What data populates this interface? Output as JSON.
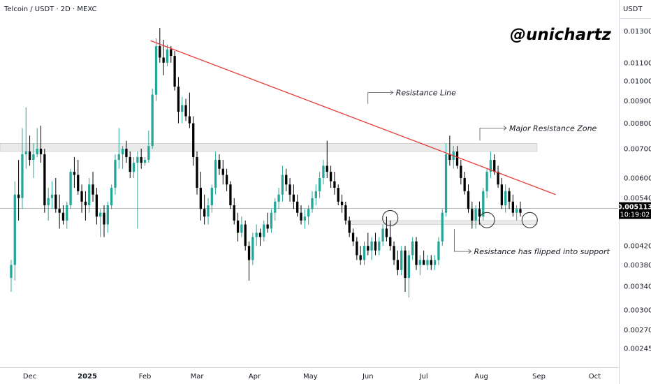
{
  "header": {
    "title": "Telcoin / USDT · 2D · MEXC",
    "currency": "USDT",
    "brand": "@unichartz"
  },
  "chart_data": {
    "type": "candlestick",
    "title": "Telcoin / USDT · 2D · MEXC",
    "ylabel": "USDT",
    "yscale": "log",
    "ylim": [
      0.00222,
      0.0138
    ],
    "y_ticks": [
      "0.013000",
      "0.011000",
      "0.010000",
      "0.009000",
      "0.008000",
      "0.007000",
      "0.006000",
      "0.005400",
      "0.004200",
      "0.003800",
      "0.003400",
      "0.003000",
      "0.002700",
      "0.002450"
    ],
    "x_ticks": [
      "Dec",
      "2025",
      "Feb",
      "Mar",
      "Apr",
      "May",
      "Jun",
      "Jul",
      "Aug",
      "Sep",
      "Oct"
    ],
    "x_range": [
      "2024-11-15",
      "2025-10-14"
    ],
    "current_price": "0.005113",
    "countdown": "10:19:02",
    "colors": {
      "up": "#26a69a",
      "down": "#000000",
      "resistance_line": "#e53935",
      "zone": "#d9d9d9"
    },
    "resistance_zones": [
      {
        "from": "2024-11-15",
        "to": "2025-08-31",
        "low": 0.0069,
        "high": 0.0072
      },
      {
        "from": "2025-05-21",
        "to": "2025-08-31",
        "low": 0.0047,
        "high": 0.0048
      }
    ],
    "resistance_line": {
      "start": [
        "2025-02-04",
        0.01235
      ],
      "end": [
        "2025-09-10",
        0.0055
      ]
    },
    "circles": [
      {
        "date": "2025-06-13",
        "value": 0.00486
      },
      {
        "date": "2025-08-04",
        "value": 0.00481
      },
      {
        "date": "2025-08-27",
        "value": 0.00481
      }
    ],
    "annotations": [
      {
        "text": "Resistance Line",
        "date": "2025-06-16",
        "value": 0.0094
      },
      {
        "text": "Major Resistance Zone",
        "date": "2025-08-16",
        "value": 0.0078
      },
      {
        "text": "Resistance has flipped into support",
        "date": "2025-07-28",
        "value": 0.00408
      }
    ],
    "candles": [
      {
        "d": "2024-11-21",
        "o": 0.00355,
        "h": 0.0039,
        "l": 0.0033,
        "c": 0.0038
      },
      {
        "d": "2024-11-23",
        "o": 0.0038,
        "h": 0.0059,
        "l": 0.0035,
        "c": 0.0055
      },
      {
        "d": "2024-11-25",
        "o": 0.0055,
        "h": 0.0066,
        "l": 0.0048,
        "c": 0.0054
      },
      {
        "d": "2024-11-27",
        "o": 0.0054,
        "h": 0.0078,
        "l": 0.0051,
        "c": 0.0068
      },
      {
        "d": "2024-11-29",
        "o": 0.0068,
        "h": 0.0087,
        "l": 0.0063,
        "c": 0.0069
      },
      {
        "d": "2024-12-01",
        "o": 0.0069,
        "h": 0.0075,
        "l": 0.0064,
        "c": 0.0066
      },
      {
        "d": "2024-12-03",
        "o": 0.0066,
        "h": 0.0072,
        "l": 0.006,
        "c": 0.0068
      },
      {
        "d": "2024-12-05",
        "o": 0.0068,
        "h": 0.0078,
        "l": 0.0067,
        "c": 0.007
      },
      {
        "d": "2024-12-07",
        "o": 0.007,
        "h": 0.0079,
        "l": 0.0065,
        "c": 0.0068
      },
      {
        "d": "2024-12-09",
        "o": 0.0068,
        "h": 0.007,
        "l": 0.005,
        "c": 0.0052
      },
      {
        "d": "2024-12-11",
        "o": 0.0052,
        "h": 0.0057,
        "l": 0.0048,
        "c": 0.0054
      },
      {
        "d": "2024-12-13",
        "o": 0.0054,
        "h": 0.0059,
        "l": 0.0051,
        "c": 0.0055
      },
      {
        "d": "2024-12-15",
        "o": 0.0055,
        "h": 0.006,
        "l": 0.005,
        "c": 0.0051
      },
      {
        "d": "2024-12-17",
        "o": 0.0051,
        "h": 0.0055,
        "l": 0.0046,
        "c": 0.005
      },
      {
        "d": "2024-12-19",
        "o": 0.005,
        "h": 0.0052,
        "l": 0.0047,
        "c": 0.0048
      },
      {
        "d": "2024-12-21",
        "o": 0.0048,
        "h": 0.0053,
        "l": 0.0046,
        "c": 0.0052
      },
      {
        "d": "2024-12-23",
        "o": 0.0052,
        "h": 0.0063,
        "l": 0.0051,
        "c": 0.0062
      },
      {
        "d": "2024-12-25",
        "o": 0.0062,
        "h": 0.0067,
        "l": 0.0057,
        "c": 0.0061
      },
      {
        "d": "2024-12-27",
        "o": 0.0061,
        "h": 0.0066,
        "l": 0.0055,
        "c": 0.0056
      },
      {
        "d": "2024-12-29",
        "o": 0.0056,
        "h": 0.0058,
        "l": 0.005,
        "c": 0.0053
      },
      {
        "d": "2024-12-31",
        "o": 0.0053,
        "h": 0.0056,
        "l": 0.0048,
        "c": 0.0052
      },
      {
        "d": "2025-01-02",
        "o": 0.0052,
        "h": 0.006,
        "l": 0.005,
        "c": 0.0058
      },
      {
        "d": "2025-01-04",
        "o": 0.0058,
        "h": 0.0062,
        "l": 0.0053,
        "c": 0.0055
      },
      {
        "d": "2025-01-06",
        "o": 0.0055,
        "h": 0.0057,
        "l": 0.0047,
        "c": 0.0049
      },
      {
        "d": "2025-01-08",
        "o": 0.0049,
        "h": 0.0051,
        "l": 0.0044,
        "c": 0.005
      },
      {
        "d": "2025-01-10",
        "o": 0.005,
        "h": 0.0052,
        "l": 0.0044,
        "c": 0.0047
      },
      {
        "d": "2025-01-12",
        "o": 0.0047,
        "h": 0.0053,
        "l": 0.0045,
        "c": 0.0052
      },
      {
        "d": "2025-01-14",
        "o": 0.0052,
        "h": 0.0058,
        "l": 0.0051,
        "c": 0.0057
      },
      {
        "d": "2025-01-16",
        "o": 0.0057,
        "h": 0.0068,
        "l": 0.0055,
        "c": 0.0066
      },
      {
        "d": "2025-01-18",
        "o": 0.0066,
        "h": 0.0078,
        "l": 0.0063,
        "c": 0.0068
      },
      {
        "d": "2025-01-20",
        "o": 0.0068,
        "h": 0.0071,
        "l": 0.0063,
        "c": 0.007
      },
      {
        "d": "2025-01-22",
        "o": 0.007,
        "h": 0.0073,
        "l": 0.0065,
        "c": 0.0067
      },
      {
        "d": "2025-01-24",
        "o": 0.0067,
        "h": 0.0069,
        "l": 0.006,
        "c": 0.0062
      },
      {
        "d": "2025-01-26",
        "o": 0.0062,
        "h": 0.0067,
        "l": 0.006,
        "c": 0.0065
      },
      {
        "d": "2025-01-28",
        "o": 0.0065,
        "h": 0.0069,
        "l": 0.0046,
        "c": 0.0067
      },
      {
        "d": "2025-01-30",
        "o": 0.0067,
        "h": 0.007,
        "l": 0.0063,
        "c": 0.0065
      },
      {
        "d": "2025-02-01",
        "o": 0.0065,
        "h": 0.0067,
        "l": 0.0064,
        "c": 0.0066
      },
      {
        "d": "2025-02-03",
        "o": 0.0066,
        "h": 0.0077,
        "l": 0.0065,
        "c": 0.0071
      },
      {
        "d": "2025-02-05",
        "o": 0.0071,
        "h": 0.0096,
        "l": 0.007,
        "c": 0.0093
      },
      {
        "d": "2025-02-07",
        "o": 0.0093,
        "h": 0.0125,
        "l": 0.009,
        "c": 0.012
      },
      {
        "d": "2025-02-09",
        "o": 0.012,
        "h": 0.0132,
        "l": 0.011,
        "c": 0.0113
      },
      {
        "d": "2025-02-11",
        "o": 0.0113,
        "h": 0.0124,
        "l": 0.0103,
        "c": 0.011
      },
      {
        "d": "2025-02-13",
        "o": 0.011,
        "h": 0.0121,
        "l": 0.0108,
        "c": 0.0118
      },
      {
        "d": "2025-02-15",
        "o": 0.0118,
        "h": 0.012,
        "l": 0.011,
        "c": 0.0114
      },
      {
        "d": "2025-02-17",
        "o": 0.0114,
        "h": 0.0117,
        "l": 0.0095,
        "c": 0.0097
      },
      {
        "d": "2025-02-19",
        "o": 0.0097,
        "h": 0.0102,
        "l": 0.008,
        "c": 0.0085
      },
      {
        "d": "2025-02-21",
        "o": 0.0085,
        "h": 0.0092,
        "l": 0.008,
        "c": 0.0088
      },
      {
        "d": "2025-02-23",
        "o": 0.0088,
        "h": 0.0091,
        "l": 0.0081,
        "c": 0.0083
      },
      {
        "d": "2025-02-25",
        "o": 0.0083,
        "h": 0.0094,
        "l": 0.0078,
        "c": 0.008
      },
      {
        "d": "2025-02-27",
        "o": 0.008,
        "h": 0.0083,
        "l": 0.0064,
        "c": 0.0067
      },
      {
        "d": "2025-03-01",
        "o": 0.0067,
        "h": 0.0069,
        "l": 0.0055,
        "c": 0.0057
      },
      {
        "d": "2025-03-03",
        "o": 0.0057,
        "h": 0.0062,
        "l": 0.0048,
        "c": 0.0051
      },
      {
        "d": "2025-03-05",
        "o": 0.0051,
        "h": 0.0055,
        "l": 0.0047,
        "c": 0.0049
      },
      {
        "d": "2025-03-07",
        "o": 0.0049,
        "h": 0.0054,
        "l": 0.0047,
        "c": 0.0052
      },
      {
        "d": "2025-03-09",
        "o": 0.0052,
        "h": 0.0058,
        "l": 0.005,
        "c": 0.0057
      },
      {
        "d": "2025-03-11",
        "o": 0.0057,
        "h": 0.0069,
        "l": 0.0055,
        "c": 0.0066
      },
      {
        "d": "2025-03-13",
        "o": 0.0066,
        "h": 0.0068,
        "l": 0.0061,
        "c": 0.0063
      },
      {
        "d": "2025-03-15",
        "o": 0.0063,
        "h": 0.0066,
        "l": 0.0058,
        "c": 0.0061
      },
      {
        "d": "2025-03-17",
        "o": 0.0061,
        "h": 0.0063,
        "l": 0.0056,
        "c": 0.0058
      },
      {
        "d": "2025-03-19",
        "o": 0.0058,
        "h": 0.0059,
        "l": 0.0051,
        "c": 0.0052
      },
      {
        "d": "2025-03-21",
        "o": 0.0052,
        "h": 0.0054,
        "l": 0.0047,
        "c": 0.0048
      },
      {
        "d": "2025-03-23",
        "o": 0.0048,
        "h": 0.005,
        "l": 0.0043,
        "c": 0.0045
      },
      {
        "d": "2025-03-25",
        "o": 0.0045,
        "h": 0.0049,
        "l": 0.0044,
        "c": 0.0047
      },
      {
        "d": "2025-03-27",
        "o": 0.0047,
        "h": 0.0048,
        "l": 0.0041,
        "c": 0.0042
      },
      {
        "d": "2025-03-29",
        "o": 0.0042,
        "h": 0.0043,
        "l": 0.0035,
        "c": 0.0039
      },
      {
        "d": "2025-03-31",
        "o": 0.0039,
        "h": 0.0045,
        "l": 0.0038,
        "c": 0.0044
      },
      {
        "d": "2025-04-02",
        "o": 0.0044,
        "h": 0.0047,
        "l": 0.0042,
        "c": 0.0045
      },
      {
        "d": "2025-04-04",
        "o": 0.0045,
        "h": 0.0046,
        "l": 0.0042,
        "c": 0.0044
      },
      {
        "d": "2025-04-06",
        "o": 0.0044,
        "h": 0.0048,
        "l": 0.0043,
        "c": 0.0047
      },
      {
        "d": "2025-04-08",
        "o": 0.0047,
        "h": 0.005,
        "l": 0.0045,
        "c": 0.0046
      },
      {
        "d": "2025-04-10",
        "o": 0.0046,
        "h": 0.0051,
        "l": 0.0045,
        "c": 0.005
      },
      {
        "d": "2025-04-12",
        "o": 0.005,
        "h": 0.0054,
        "l": 0.0048,
        "c": 0.0053
      },
      {
        "d": "2025-04-14",
        "o": 0.0053,
        "h": 0.0057,
        "l": 0.0051,
        "c": 0.0055
      },
      {
        "d": "2025-04-16",
        "o": 0.0055,
        "h": 0.0064,
        "l": 0.0053,
        "c": 0.0061
      },
      {
        "d": "2025-04-18",
        "o": 0.0061,
        "h": 0.0063,
        "l": 0.0056,
        "c": 0.0058
      },
      {
        "d": "2025-04-20",
        "o": 0.0058,
        "h": 0.006,
        "l": 0.0053,
        "c": 0.0055
      },
      {
        "d": "2025-04-22",
        "o": 0.0055,
        "h": 0.0058,
        "l": 0.0051,
        "c": 0.0053
      },
      {
        "d": "2025-04-24",
        "o": 0.0053,
        "h": 0.0055,
        "l": 0.0049,
        "c": 0.005
      },
      {
        "d": "2025-04-26",
        "o": 0.005,
        "h": 0.0052,
        "l": 0.0047,
        "c": 0.0048
      },
      {
        "d": "2025-04-28",
        "o": 0.0048,
        "h": 0.0051,
        "l": 0.0046,
        "c": 0.0049
      },
      {
        "d": "2025-04-30",
        "o": 0.0049,
        "h": 0.0052,
        "l": 0.0047,
        "c": 0.0051
      },
      {
        "d": "2025-05-02",
        "o": 0.0051,
        "h": 0.0056,
        "l": 0.005,
        "c": 0.0054
      },
      {
        "d": "2025-05-04",
        "o": 0.0054,
        "h": 0.0058,
        "l": 0.0052,
        "c": 0.0056
      },
      {
        "d": "2025-05-06",
        "o": 0.0056,
        "h": 0.0062,
        "l": 0.0054,
        "c": 0.006
      },
      {
        "d": "2025-05-08",
        "o": 0.006,
        "h": 0.0066,
        "l": 0.0058,
        "c": 0.0064
      },
      {
        "d": "2025-05-10",
        "o": 0.0064,
        "h": 0.0073,
        "l": 0.006,
        "c": 0.0062
      },
      {
        "d": "2025-05-12",
        "o": 0.0062,
        "h": 0.0064,
        "l": 0.0057,
        "c": 0.0059
      },
      {
        "d": "2025-05-14",
        "o": 0.0059,
        "h": 0.0062,
        "l": 0.0055,
        "c": 0.0057
      },
      {
        "d": "2025-05-16",
        "o": 0.0057,
        "h": 0.0058,
        "l": 0.0052,
        "c": 0.0053
      },
      {
        "d": "2025-05-18",
        "o": 0.0053,
        "h": 0.0055,
        "l": 0.005,
        "c": 0.0052
      },
      {
        "d": "2025-05-20",
        "o": 0.0052,
        "h": 0.0053,
        "l": 0.0047,
        "c": 0.0048
      },
      {
        "d": "2025-05-22",
        "o": 0.0048,
        "h": 0.0049,
        "l": 0.0044,
        "c": 0.0045
      },
      {
        "d": "2025-05-24",
        "o": 0.0045,
        "h": 0.0046,
        "l": 0.0042,
        "c": 0.0043
      },
      {
        "d": "2025-05-26",
        "o": 0.0043,
        "h": 0.0044,
        "l": 0.0039,
        "c": 0.004
      },
      {
        "d": "2025-05-28",
        "o": 0.004,
        "h": 0.0042,
        "l": 0.0038,
        "c": 0.0039
      },
      {
        "d": "2025-05-30",
        "o": 0.0039,
        "h": 0.0043,
        "l": 0.0038,
        "c": 0.0042
      },
      {
        "d": "2025-06-01",
        "o": 0.0042,
        "h": 0.0045,
        "l": 0.004,
        "c": 0.0041
      },
      {
        "d": "2025-06-03",
        "o": 0.0041,
        "h": 0.0044,
        "l": 0.0039,
        "c": 0.0043
      },
      {
        "d": "2025-06-05",
        "o": 0.0043,
        "h": 0.0045,
        "l": 0.004,
        "c": 0.0041
      },
      {
        "d": "2025-06-07",
        "o": 0.0041,
        "h": 0.0044,
        "l": 0.004,
        "c": 0.0043
      },
      {
        "d": "2025-06-09",
        "o": 0.0043,
        "h": 0.0047,
        "l": 0.0042,
        "c": 0.0046
      },
      {
        "d": "2025-06-11",
        "o": 0.0046,
        "h": 0.0049,
        "l": 0.0043,
        "c": 0.0044
      },
      {
        "d": "2025-06-13",
        "o": 0.0044,
        "h": 0.0048,
        "l": 0.0041,
        "c": 0.0042
      },
      {
        "d": "2025-06-15",
        "o": 0.0042,
        "h": 0.0043,
        "l": 0.0038,
        "c": 0.0039
      },
      {
        "d": "2025-06-17",
        "o": 0.0039,
        "h": 0.0041,
        "l": 0.0036,
        "c": 0.0037
      },
      {
        "d": "2025-06-19",
        "o": 0.0037,
        "h": 0.0042,
        "l": 0.0036,
        "c": 0.0041
      },
      {
        "d": "2025-06-21",
        "o": 0.0041,
        "h": 0.0042,
        "l": 0.0033,
        "c": 0.00355
      },
      {
        "d": "2025-06-23",
        "o": 0.00355,
        "h": 0.0041,
        "l": 0.0032,
        "c": 0.004
      },
      {
        "d": "2025-06-25",
        "o": 0.004,
        "h": 0.0044,
        "l": 0.0039,
        "c": 0.0043
      },
      {
        "d": "2025-06-27",
        "o": 0.0043,
        "h": 0.0044,
        "l": 0.0037,
        "c": 0.0038
      },
      {
        "d": "2025-06-29",
        "o": 0.0038,
        "h": 0.004,
        "l": 0.0036,
        "c": 0.0039
      },
      {
        "d": "2025-07-01",
        "o": 0.0039,
        "h": 0.0041,
        "l": 0.0038,
        "c": 0.0038
      },
      {
        "d": "2025-07-03",
        "o": 0.0038,
        "h": 0.004,
        "l": 0.0037,
        "c": 0.0039
      },
      {
        "d": "2025-07-05",
        "o": 0.0039,
        "h": 0.004,
        "l": 0.0037,
        "c": 0.0038
      },
      {
        "d": "2025-07-07",
        "o": 0.0038,
        "h": 0.004,
        "l": 0.0037,
        "c": 0.0039
      },
      {
        "d": "2025-07-09",
        "o": 0.0039,
        "h": 0.0044,
        "l": 0.0038,
        "c": 0.0043
      },
      {
        "d": "2025-07-11",
        "o": 0.0043,
        "h": 0.0051,
        "l": 0.0042,
        "c": 0.005
      },
      {
        "d": "2025-07-13",
        "o": 0.005,
        "h": 0.0072,
        "l": 0.0049,
        "c": 0.0068
      },
      {
        "d": "2025-07-15",
        "o": 0.0068,
        "h": 0.0075,
        "l": 0.0064,
        "c": 0.0066
      },
      {
        "d": "2025-07-17",
        "o": 0.0066,
        "h": 0.0071,
        "l": 0.0063,
        "c": 0.0069
      },
      {
        "d": "2025-07-19",
        "o": 0.0069,
        "h": 0.0071,
        "l": 0.0063,
        "c": 0.0064
      },
      {
        "d": "2025-07-21",
        "o": 0.0064,
        "h": 0.0066,
        "l": 0.0058,
        "c": 0.006
      },
      {
        "d": "2025-07-23",
        "o": 0.006,
        "h": 0.0062,
        "l": 0.0055,
        "c": 0.0056
      },
      {
        "d": "2025-07-25",
        "o": 0.0056,
        "h": 0.0058,
        "l": 0.005,
        "c": 0.0051
      },
      {
        "d": "2025-07-27",
        "o": 0.0051,
        "h": 0.0053,
        "l": 0.0046,
        "c": 0.0048
      },
      {
        "d": "2025-07-29",
        "o": 0.0048,
        "h": 0.0052,
        "l": 0.0046,
        "c": 0.0051
      },
      {
        "d": "2025-07-31",
        "o": 0.0051,
        "h": 0.0053,
        "l": 0.0047,
        "c": 0.0049
      },
      {
        "d": "2025-08-02",
        "o": 0.0049,
        "h": 0.0057,
        "l": 0.0048,
        "c": 0.0056
      },
      {
        "d": "2025-08-04",
        "o": 0.0056,
        "h": 0.0063,
        "l": 0.0054,
        "c": 0.0062
      },
      {
        "d": "2025-08-06",
        "o": 0.0062,
        "h": 0.0069,
        "l": 0.006,
        "c": 0.0066
      },
      {
        "d": "2025-08-08",
        "o": 0.0066,
        "h": 0.0068,
        "l": 0.0061,
        "c": 0.0062
      },
      {
        "d": "2025-08-10",
        "o": 0.0062,
        "h": 0.0064,
        "l": 0.0057,
        "c": 0.0058
      },
      {
        "d": "2025-08-12",
        "o": 0.0058,
        "h": 0.006,
        "l": 0.0051,
        "c": 0.0052
      },
      {
        "d": "2025-08-14",
        "o": 0.0052,
        "h": 0.0058,
        "l": 0.005,
        "c": 0.0056
      },
      {
        "d": "2025-08-16",
        "o": 0.0056,
        "h": 0.0057,
        "l": 0.0051,
        "c": 0.0053
      },
      {
        "d": "2025-08-18",
        "o": 0.0053,
        "h": 0.0055,
        "l": 0.0049,
        "c": 0.005
      },
      {
        "d": "2025-08-20",
        "o": 0.005,
        "h": 0.0052,
        "l": 0.0048,
        "c": 0.0051
      },
      {
        "d": "2025-08-22",
        "o": 0.0051,
        "h": 0.0053,
        "l": 0.0049,
        "c": 0.005
      }
    ]
  }
}
